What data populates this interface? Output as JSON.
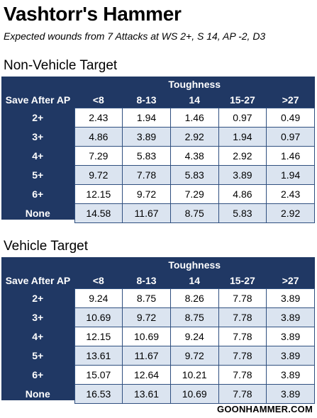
{
  "title": "Vashtorr's Hammer",
  "subtitle": "Expected wounds from 7 Attacks at WS 2+, S 14, AP -2, D3",
  "footer": "GOONHAMMER.COM",
  "tables": [
    {
      "heading": "Non-Vehicle Target",
      "group_header": "Toughness",
      "row_header": "Save After AP",
      "columns": [
        "<8",
        "8-13",
        "14",
        "15-27",
        ">27"
      ],
      "rows": [
        {
          "label": "2+",
          "values": [
            "2.43",
            "1.94",
            "1.46",
            "0.97",
            "0.49"
          ]
        },
        {
          "label": "3+",
          "values": [
            "4.86",
            "3.89",
            "2.92",
            "1.94",
            "0.97"
          ]
        },
        {
          "label": "4+",
          "values": [
            "7.29",
            "5.83",
            "4.38",
            "2.92",
            "1.46"
          ]
        },
        {
          "label": "5+",
          "values": [
            "9.72",
            "7.78",
            "5.83",
            "3.89",
            "1.94"
          ]
        },
        {
          "label": "6+",
          "values": [
            "12.15",
            "9.72",
            "7.29",
            "4.86",
            "2.43"
          ]
        },
        {
          "label": "None",
          "values": [
            "14.58",
            "11.67",
            "8.75",
            "5.83",
            "2.92"
          ]
        }
      ]
    },
    {
      "heading": "Vehicle Target",
      "group_header": "Toughness",
      "row_header": "Save After AP",
      "columns": [
        "<8",
        "8-13",
        "14",
        "15-27",
        ">27"
      ],
      "rows": [
        {
          "label": "2+",
          "values": [
            "9.24",
            "8.75",
            "8.26",
            "7.78",
            "3.89"
          ]
        },
        {
          "label": "3+",
          "values": [
            "10.69",
            "9.72",
            "8.75",
            "7.78",
            "3.89"
          ]
        },
        {
          "label": "4+",
          "values": [
            "12.15",
            "10.69",
            "9.24",
            "7.78",
            "3.89"
          ]
        },
        {
          "label": "5+",
          "values": [
            "13.61",
            "11.67",
            "9.72",
            "7.78",
            "3.89"
          ]
        },
        {
          "label": "6+",
          "values": [
            "15.07",
            "12.64",
            "10.21",
            "7.78",
            "3.89"
          ]
        },
        {
          "label": "None",
          "values": [
            "16.53",
            "13.61",
            "10.69",
            "7.78",
            "3.89"
          ]
        }
      ]
    }
  ]
}
